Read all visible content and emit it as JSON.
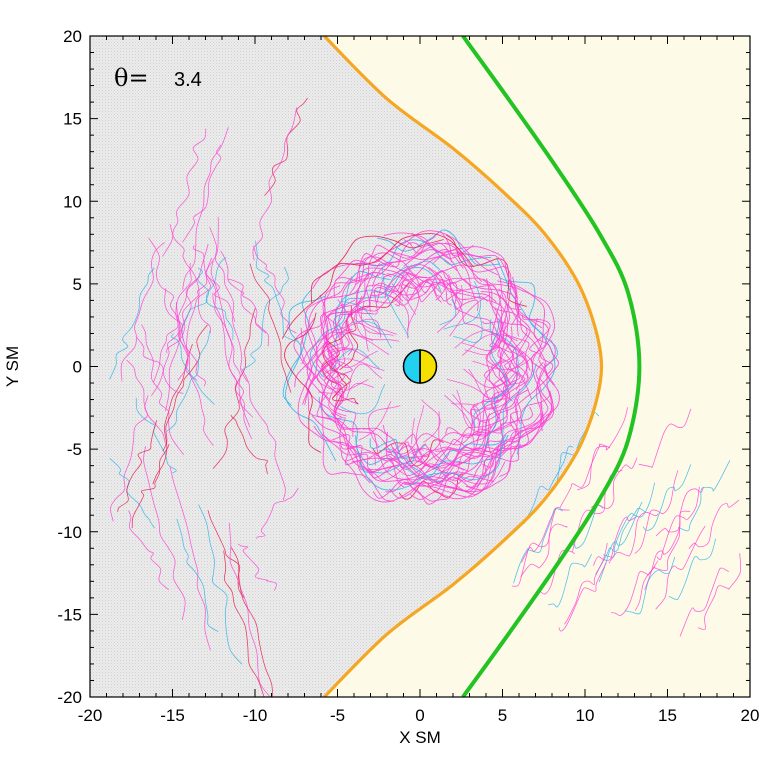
{
  "chart_data": {
    "type": "line",
    "xlabel": "X SM",
    "ylabel": "Y SM",
    "xlim": [
      -20,
      20
    ],
    "ylim": [
      -20,
      20
    ],
    "xticks": [
      -20,
      -15,
      -10,
      -5,
      0,
      5,
      10,
      15,
      20
    ],
    "yticks": [
      20,
      15,
      10,
      5,
      0,
      -5,
      -10,
      -15,
      -20
    ],
    "annotation": {
      "symbol": "θ=",
      "value": "3.4"
    },
    "colors": {
      "magnetosheath_fill": "#fdfbe8",
      "magnetosphere_fill": "#e3e3e3",
      "magnetopause": "#f5a623",
      "bow_shock": "#22c322",
      "field_lines_primary": "#ff3fd6",
      "field_lines_secondary": "#2fb3ea",
      "field_lines_accent": "#e8174f",
      "earth_day": "#f5e000",
      "earth_night": "#22d1f0"
    },
    "series": [
      {
        "type": "boundary",
        "color": "magnetopause",
        "points": [
          [
            -5.8,
            -20
          ],
          [
            -2,
            -16.2
          ],
          [
            2,
            -13.2
          ],
          [
            5,
            -10.6
          ],
          [
            7.5,
            -8.1
          ],
          [
            9.5,
            -5.2
          ],
          [
            10.6,
            -2.4
          ],
          [
            11,
            0
          ],
          [
            10.6,
            2.4
          ],
          [
            9.5,
            5.2
          ],
          [
            7.5,
            8.1
          ],
          [
            5,
            10.6
          ],
          [
            2,
            13.2
          ],
          [
            -2,
            16.2
          ],
          [
            -5.8,
            20
          ]
        ]
      },
      {
        "type": "boundary",
        "color": "bow_shock",
        "points": [
          [
            2.6,
            -20
          ],
          [
            5.5,
            -16
          ],
          [
            8.3,
            -12
          ],
          [
            10.9,
            -8
          ],
          [
            12.6,
            -4.5
          ],
          [
            13.3,
            0
          ],
          [
            12.6,
            4.5
          ],
          [
            10.9,
            8
          ],
          [
            8.3,
            12
          ],
          [
            5.5,
            16
          ],
          [
            2.6,
            20
          ]
        ]
      },
      {
        "type": "earth",
        "center": [
          0,
          0
        ],
        "radius": 1
      }
    ]
  }
}
